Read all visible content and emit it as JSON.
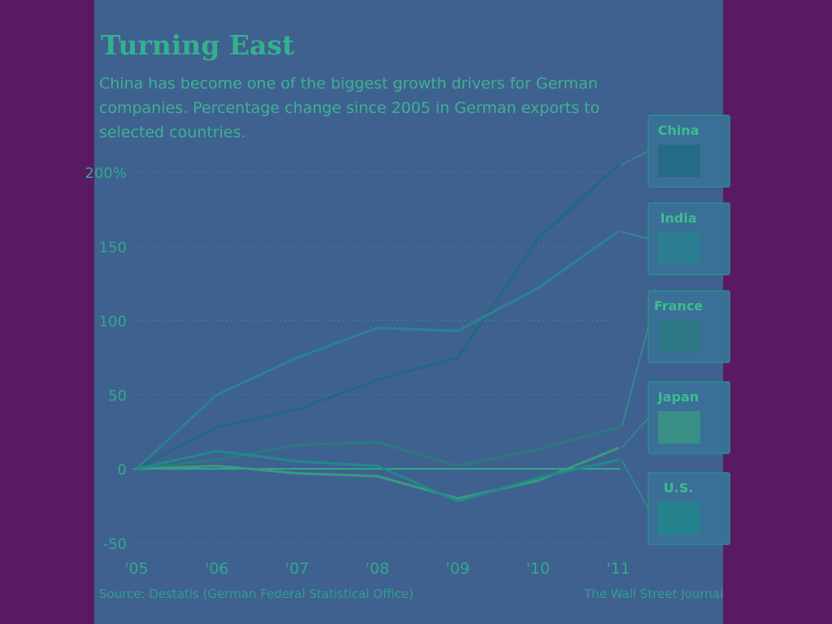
{
  "chart_data": {
    "type": "line",
    "title": "Turning East",
    "subtitle": "China has become one of the biggest growth drivers for German companies. Percentage change since 2005 in German exports to selected countries.",
    "x": [
      "'05",
      "'06",
      "'07",
      "'08",
      "'09",
      "'10",
      "'11"
    ],
    "ylim": [
      -50,
      200
    ],
    "yticks": [
      {
        "value": 200,
        "label": "200%"
      },
      {
        "value": 150,
        "label": "150"
      },
      {
        "value": 100,
        "label": "100"
      },
      {
        "value": 50,
        "label": "50"
      },
      {
        "value": 0,
        "label": "0"
      },
      {
        "value": -50,
        "label": "-50"
      }
    ],
    "grid": true,
    "legend_position": "right",
    "series": [
      {
        "name": "China",
        "color": "#1f6a80",
        "values": [
          0,
          28,
          40,
          60,
          75,
          155,
          205
        ]
      },
      {
        "name": "India",
        "color": "#2a8391",
        "values": [
          0,
          50,
          75,
          95,
          93,
          122,
          160
        ]
      },
      {
        "name": "France",
        "color": "#2b7a7e",
        "values": [
          0,
          6,
          16,
          18,
          2,
          13,
          28
        ]
      },
      {
        "name": "Japan",
        "color": "#3a9a80",
        "values": [
          0,
          2,
          -3,
          -5,
          -20,
          -8,
          14
        ]
      },
      {
        "name": "U.S.",
        "color": "#1f8a8a",
        "values": [
          0,
          12,
          5,
          2,
          -22,
          -6,
          6
        ]
      }
    ]
  },
  "source": "Source: Destatis (German Federal Statistical Office)",
  "credit": "The Wall Street Journal"
}
